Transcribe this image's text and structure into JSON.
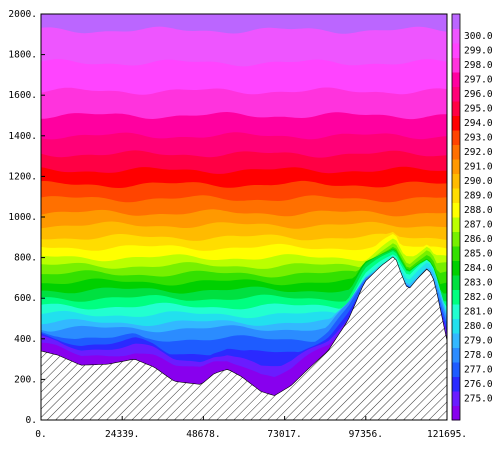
{
  "chart_data": {
    "type": "filled-contour",
    "title": "",
    "xlabel": "",
    "ylabel": "",
    "xlim": [
      0,
      121695
    ],
    "ylim": [
      0,
      2000
    ],
    "x_ticks": [
      {
        "value": 0,
        "label": "0."
      },
      {
        "value": 24339,
        "label": "24339."
      },
      {
        "value": 48678,
        "label": "48678."
      },
      {
        "value": 73017,
        "label": "73017."
      },
      {
        "value": 97356,
        "label": "97356."
      },
      {
        "value": 121695,
        "label": "121695."
      }
    ],
    "y_ticks": [
      {
        "value": 0,
        "label": "0."
      },
      {
        "value": 200,
        "label": "200."
      },
      {
        "value": 400,
        "label": "400."
      },
      {
        "value": 600,
        "label": "600."
      },
      {
        "value": 800,
        "label": "800."
      },
      {
        "value": 1000,
        "label": "1000."
      },
      {
        "value": 1200,
        "label": "1200."
      },
      {
        "value": 1400,
        "label": "1400."
      },
      {
        "value": 1600,
        "label": "1600."
      },
      {
        "value": 1800,
        "label": "1800."
      },
      {
        "value": 2000,
        "label": "2000."
      }
    ],
    "colorbar": {
      "levels": [
        "275.0",
        "276.0",
        "277.0",
        "278.0",
        "279.0",
        "280.0",
        "281.0",
        "282.0",
        "283.0",
        "284.0",
        "285.0",
        "286.0",
        "287.0",
        "288.0",
        "289.0",
        "290.0",
        "291.0",
        "292.0",
        "293.0",
        "294.0",
        "295.0",
        "296.0",
        "297.0",
        "298.0",
        "299.0",
        "300.0"
      ],
      "colors": [
        "#8800ee",
        "#6a1cff",
        "#2a2aff",
        "#1e5cff",
        "#2b8cff",
        "#33b8ff",
        "#22e0ee",
        "#22ffd0",
        "#00ff80",
        "#00e040",
        "#00d000",
        "#33e000",
        "#77f000",
        "#bbff00",
        "#ffff00",
        "#ffdd00",
        "#ffbb00",
        "#ff9900",
        "#ff7000",
        "#ff4400",
        "#ff0000",
        "#ff0044",
        "#ff0077",
        "#ff00a0",
        "#ff33dd",
        "#ff44ff",
        "#ee55ff",
        "#bb66ff"
      ]
    },
    "terrain": {
      "x": [
        0,
        5000,
        12000,
        20000,
        28000,
        34000,
        40000,
        48000,
        52000,
        56000,
        60000,
        66000,
        70000,
        75000,
        80000,
        86000,
        92000,
        97000,
        102000,
        106000,
        108000,
        110000,
        113000,
        116000,
        118000,
        121695
      ],
      "height": [
        340,
        320,
        270,
        275,
        300,
        260,
        190,
        175,
        230,
        250,
        215,
        140,
        120,
        170,
        250,
        340,
        490,
        680,
        760,
        810,
        720,
        640,
        700,
        750,
        680,
        390
      ],
      "fill": "hatched"
    },
    "field_description_levels_height_m": [
      {
        "level": "298.0",
        "height": 1790
      },
      {
        "level": "296.0",
        "height": 1560
      },
      {
        "level": "294.0",
        "height": 1390
      },
      {
        "level": "292.0",
        "height": 1270
      },
      {
        "level": "290.0",
        "height": 1160
      },
      {
        "level": "288.0",
        "height": 1020
      },
      {
        "level": "286.0",
        "height": 880
      },
      {
        "level": "284.0",
        "height": 760
      },
      {
        "level": "282.0",
        "height": 640
      },
      {
        "level": "280.0",
        "height": 520
      }
    ]
  }
}
